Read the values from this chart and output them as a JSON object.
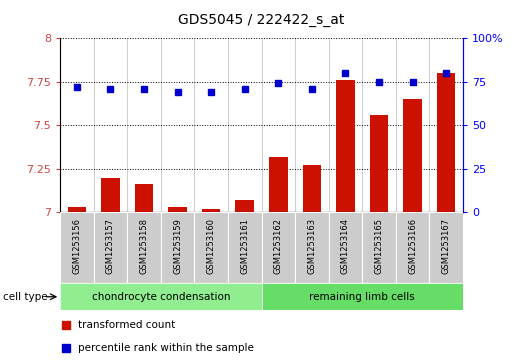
{
  "title": "GDS5045 / 222422_s_at",
  "samples": [
    "GSM1253156",
    "GSM1253157",
    "GSM1253158",
    "GSM1253159",
    "GSM1253160",
    "GSM1253161",
    "GSM1253162",
    "GSM1253163",
    "GSM1253164",
    "GSM1253165",
    "GSM1253166",
    "GSM1253167"
  ],
  "transformed_count": [
    7.03,
    7.2,
    7.16,
    7.03,
    7.02,
    7.07,
    7.32,
    7.27,
    7.76,
    7.56,
    7.65,
    7.8
  ],
  "percentile_rank": [
    72,
    71,
    71,
    69,
    69,
    71,
    74,
    71,
    80,
    75,
    75,
    80
  ],
  "cell_type_labels": [
    "chondrocyte condensation",
    "remaining limb cells"
  ],
  "group_split": 6,
  "ylim_left": [
    7.0,
    8.0
  ],
  "ylim_right": [
    0,
    100
  ],
  "yticks_left": [
    7.0,
    7.25,
    7.5,
    7.75,
    8.0
  ],
  "yticks_right": [
    0,
    25,
    50,
    75,
    100
  ],
  "ytick_labels_left": [
    "7",
    "7.25",
    "7.5",
    "7.75",
    "8"
  ],
  "ytick_labels_right": [
    "0",
    "25",
    "50",
    "75",
    "100%"
  ],
  "bar_color": "#cc1100",
  "dot_color": "#0000cc",
  "cell_color_1": "#90ee90",
  "cell_color_2": "#66dd66",
  "sample_box_color": "#cccccc",
  "legend_red_label": "transformed count",
  "legend_blue_label": "percentile rank within the sample"
}
